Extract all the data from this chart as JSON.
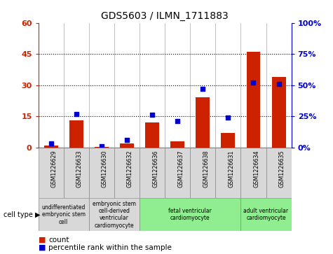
{
  "title": "GDS5603 / ILMN_1711883",
  "samples": [
    "GSM1226629",
    "GSM1226633",
    "GSM1226630",
    "GSM1226632",
    "GSM1226636",
    "GSM1226637",
    "GSM1226638",
    "GSM1226631",
    "GSM1226634",
    "GSM1226635"
  ],
  "counts": [
    1,
    13,
    0.3,
    2,
    12,
    3,
    24,
    7,
    46,
    34
  ],
  "percentiles": [
    3,
    27,
    1,
    6,
    26,
    21,
    47,
    24,
    52,
    51
  ],
  "ylim_left": [
    0,
    60
  ],
  "ylim_right": [
    0,
    100
  ],
  "yticks_left": [
    0,
    15,
    30,
    45,
    60
  ],
  "yticks_right": [
    0,
    25,
    50,
    75,
    100
  ],
  "ytick_labels_left": [
    "0",
    "15",
    "30",
    "45",
    "60"
  ],
  "ytick_labels_right": [
    "0%",
    "25%",
    "50%",
    "75%",
    "100%"
  ],
  "cell_type_groups": [
    {
      "label": "undifferentiated\nembryonic stem\ncell",
      "start": 0,
      "end": 2,
      "color": "#d8d8d8"
    },
    {
      "label": "embryonic stem\ncell-derived\nventricular\ncardiomyocyte",
      "start": 2,
      "end": 4,
      "color": "#d8d8d8"
    },
    {
      "label": "fetal ventricular\ncardiomyocyte",
      "start": 4,
      "end": 8,
      "color": "#90ee90"
    },
    {
      "label": "adult ventricular\ncardiomyocyte",
      "start": 8,
      "end": 10,
      "color": "#90ee90"
    }
  ],
  "bar_color": "#cc2200",
  "dot_color": "#0000cc",
  "grid_color": "#000000",
  "background_color": "#ffffff",
  "cell_type_label": "cell type",
  "legend_count_label": "count",
  "legend_percentile_label": "percentile rank within the sample"
}
